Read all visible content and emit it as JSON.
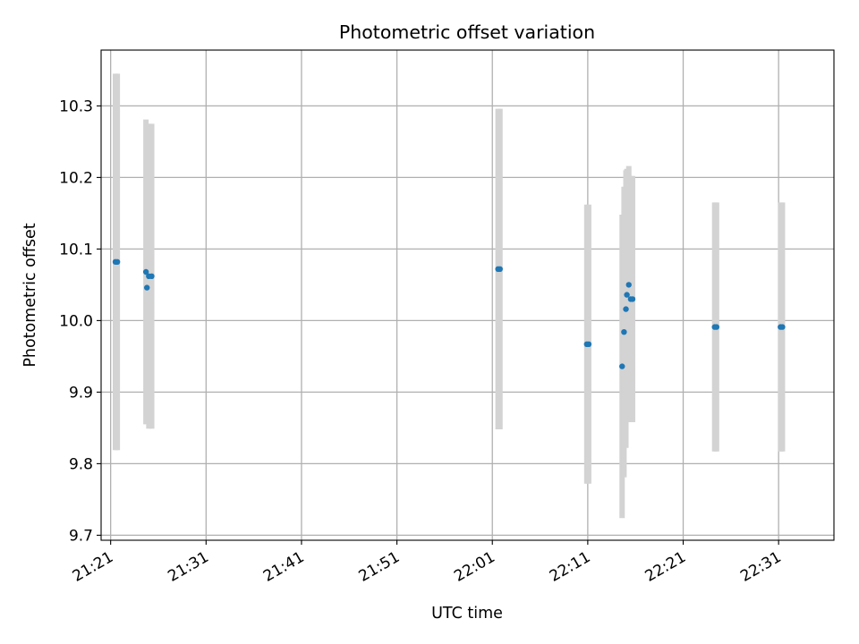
{
  "chart_data": {
    "type": "scatter",
    "title": "Photometric offset variation",
    "xlabel": "UTC time",
    "ylabel": "Photometric offset",
    "x_unit": "minutes after midnight UTC",
    "xlim": [
      1280.0,
      1356.8
    ],
    "ylim": [
      9.693,
      10.378
    ],
    "grid": true,
    "x_ticks": [
      {
        "value": 1281,
        "label": "21:21"
      },
      {
        "value": 1291,
        "label": "21:31"
      },
      {
        "value": 1301,
        "label": "21:41"
      },
      {
        "value": 1311,
        "label": "21:51"
      },
      {
        "value": 1321,
        "label": "22:01"
      },
      {
        "value": 1331,
        "label": "22:11"
      },
      {
        "value": 1341,
        "label": "22:21"
      },
      {
        "value": 1351,
        "label": "22:31"
      }
    ],
    "y_ticks": [
      {
        "value": 9.7,
        "label": "9.7"
      },
      {
        "value": 9.8,
        "label": "9.8"
      },
      {
        "value": 9.9,
        "label": "9.9"
      },
      {
        "value": 10.0,
        "label": "10.0"
      },
      {
        "value": 10.1,
        "label": "10.1"
      },
      {
        "value": 10.2,
        "label": "10.2"
      },
      {
        "value": 10.3,
        "label": "10.3"
      }
    ],
    "colors": {
      "points": "#1f77b4",
      "errorbars": "#d3d3d3"
    },
    "points": [
      {
        "x": 1281.5,
        "y": 10.082,
        "yerr": 0.263
      },
      {
        "x": 1281.7,
        "y": 10.082,
        "yerr": 0.263
      },
      {
        "x": 1284.7,
        "y": 10.068,
        "yerr": 0.213
      },
      {
        "x": 1284.8,
        "y": 10.046,
        "yerr": 0.18
      },
      {
        "x": 1285.0,
        "y": 10.062,
        "yerr": 0.213
      },
      {
        "x": 1285.3,
        "y": 10.062,
        "yerr": 0.213
      },
      {
        "x": 1321.6,
        "y": 10.072,
        "yerr": 0.224
      },
      {
        "x": 1321.8,
        "y": 10.072,
        "yerr": 0.224
      },
      {
        "x": 1330.9,
        "y": 9.967,
        "yerr": 0.195
      },
      {
        "x": 1331.1,
        "y": 9.967,
        "yerr": 0.195
      },
      {
        "x": 1334.6,
        "y": 9.936,
        "yerr": 0.212
      },
      {
        "x": 1334.8,
        "y": 9.984,
        "yerr": 0.203
      },
      {
        "x": 1335.0,
        "y": 10.016,
        "yerr": 0.194
      },
      {
        "x": 1335.1,
        "y": 10.036,
        "yerr": 0.176
      },
      {
        "x": 1335.3,
        "y": 10.05,
        "yerr": 0.166
      },
      {
        "x": 1335.5,
        "y": 10.03,
        "yerr": 0.172
      },
      {
        "x": 1335.7,
        "y": 10.03,
        "yerr": 0.172
      },
      {
        "x": 1344.3,
        "y": 9.991,
        "yerr": 0.174
      },
      {
        "x": 1344.5,
        "y": 9.991,
        "yerr": 0.174
      },
      {
        "x": 1351.2,
        "y": 9.991,
        "yerr": 0.174
      },
      {
        "x": 1351.4,
        "y": 9.991,
        "yerr": 0.174
      }
    ]
  }
}
